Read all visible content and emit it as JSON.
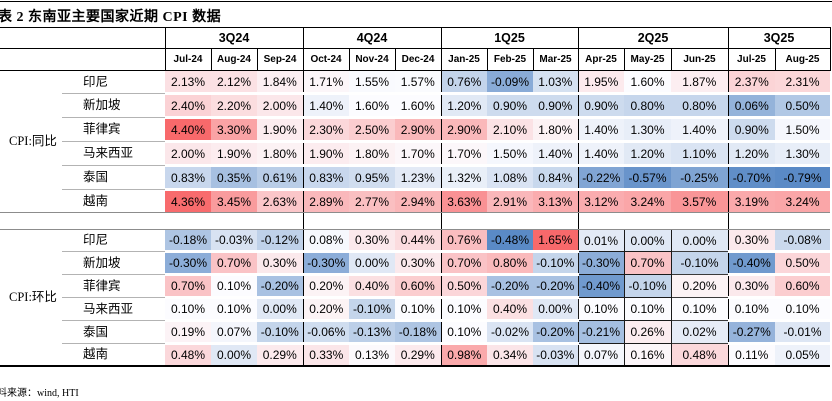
{
  "chart_data": {
    "type": "table",
    "title": "表 2 东南亚主要国家近期 CPI 数据",
    "source": "资料来源：wind, HTI",
    "quarters": [
      {
        "label": "3Q24",
        "span": 3
      },
      {
        "label": "4Q24",
        "span": 3
      },
      {
        "label": "1Q25",
        "span": 3
      },
      {
        "label": "2Q25",
        "span": 3
      },
      {
        "label": "3Q25",
        "span": 2
      }
    ],
    "months": [
      "Jul-24",
      "Aug-24",
      "Sep-24",
      "Oct-24",
      "Nov-24",
      "Dec-24",
      "Jan-25",
      "Feb-25",
      "Mar-25",
      "Apr-25",
      "May-25",
      "Jun-25",
      "Jul-25",
      "Aug-25"
    ],
    "value_unit": "%",
    "sections": [
      {
        "label": "CPI:同比",
        "rows": [
          {
            "country": "印尼",
            "values": [
              2.13,
              2.12,
              1.84,
              1.71,
              1.55,
              1.57,
              0.76,
              -0.09,
              1.03,
              1.95,
              1.6,
              1.87,
              2.37,
              2.31
            ]
          },
          {
            "country": "新加坡",
            "values": [
              2.4,
              2.2,
              2.0,
              1.4,
              1.6,
              1.6,
              1.2,
              0.9,
              0.9,
              0.9,
              0.8,
              0.8,
              0.06,
              0.5
            ]
          },
          {
            "country": "菲律宾",
            "values": [
              4.4,
              3.3,
              1.9,
              2.3,
              2.5,
              2.9,
              2.9,
              2.1,
              1.8,
              1.4,
              1.3,
              1.4,
              0.9,
              1.5
            ]
          },
          {
            "country": "马来西亚",
            "values": [
              2.0,
              1.9,
              1.8,
              1.9,
              1.8,
              1.7,
              1.7,
              1.5,
              1.4,
              1.4,
              1.2,
              1.1,
              1.2,
              1.3
            ]
          },
          {
            "country": "泰国",
            "values": [
              0.83,
              0.35,
              0.61,
              0.83,
              0.95,
              1.23,
              1.32,
              1.08,
              0.84,
              -0.22,
              -0.57,
              -0.25,
              -0.7,
              -0.79
            ]
          },
          {
            "country": "越南",
            "values": [
              4.36,
              3.45,
              2.63,
              2.89,
              2.77,
              2.94,
              3.63,
              2.91,
              3.13,
              3.12,
              3.24,
              3.57,
              3.19,
              3.24
            ]
          }
        ]
      },
      {
        "label": "CPI:环比",
        "rows": [
          {
            "country": "印尼",
            "values": [
              -0.18,
              -0.03,
              -0.12,
              0.08,
              0.3,
              0.44,
              0.76,
              -0.48,
              1.65,
              0.01,
              0.0,
              0.0,
              0.3,
              -0.08
            ]
          },
          {
            "country": "新加坡",
            "values": [
              -0.3,
              0.7,
              0.3,
              -0.3,
              0.0,
              0.3,
              0.7,
              0.8,
              -0.1,
              -0.3,
              0.7,
              -0.1,
              -0.4,
              0.5
            ]
          },
          {
            "country": "菲律宾",
            "values": [
              0.7,
              0.1,
              -0.2,
              0.2,
              0.4,
              0.6,
              0.5,
              -0.2,
              -0.2,
              -0.4,
              -0.1,
              0.2,
              0.3,
              0.6
            ]
          },
          {
            "country": "马来西亚",
            "values": [
              0.1,
              0.1,
              0.0,
              0.2,
              -0.1,
              0.1,
              0.1,
              0.4,
              0.0,
              0.1,
              0.1,
              0.1,
              0.1,
              0.1
            ]
          },
          {
            "country": "泰国",
            "values": [
              0.19,
              0.07,
              -0.1,
              -0.06,
              -0.13,
              -0.18,
              0.1,
              -0.02,
              -0.2,
              -0.21,
              0.26,
              0.02,
              -0.27,
              -0.01
            ]
          },
          {
            "country": "越南",
            "values": [
              0.48,
              0.0,
              0.29,
              0.33,
              0.13,
              0.29,
              0.98,
              0.34,
              -0.03,
              0.07,
              0.16,
              0.48,
              0.11,
              0.05
            ]
          }
        ]
      }
    ],
    "heatmap_colors": {
      "min_color": "#5A8AC6",
      "mid_color": "#FCFCFF",
      "max_color": "#F8696B",
      "midpoint": "median of each section"
    },
    "layout_hints": {
      "grid": "black borders around quarter and month header cells; black vertical separators between quarter groups; gray rules between country rows"
    }
  }
}
